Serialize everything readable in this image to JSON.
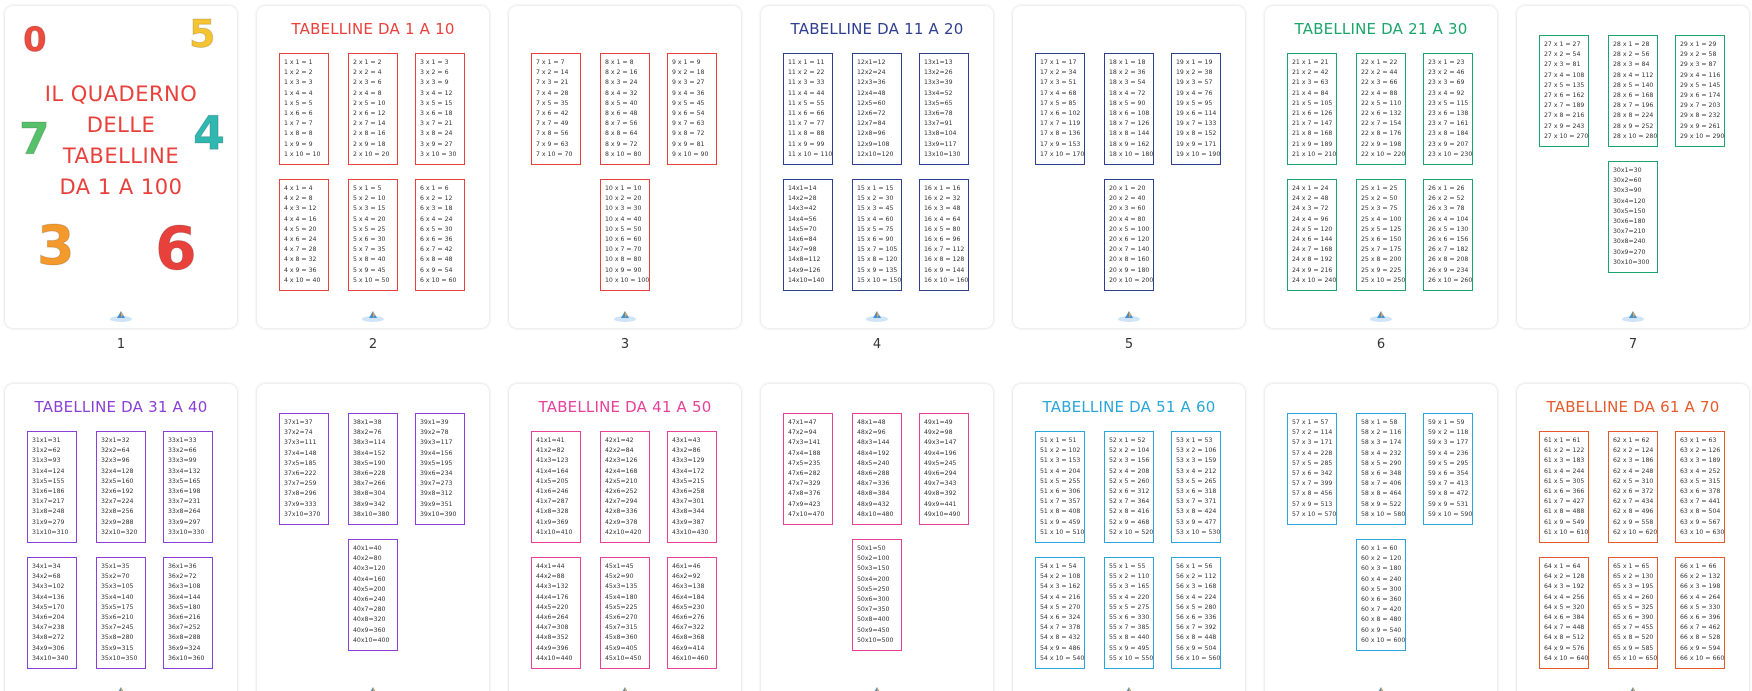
{
  "pages": [
    {
      "label": "1",
      "cover": {
        "title_lines": [
          "IL QUADERNO",
          "DELLE",
          "TABELLINE",
          "DA 1 A 100"
        ],
        "balloons": [
          "0",
          "5",
          "7",
          "4",
          "3",
          "6"
        ]
      }
    },
    {
      "label": "2",
      "title": "TABELLINE DA 1 A 10",
      "color": "#e8413c",
      "tables": [
        [
          "1 x 1 = 1",
          "1 x 2 = 2",
          "1 x 3 = 3",
          "1 x 4 = 4",
          "1 x 5 = 5",
          "1 x 6 = 6",
          "1 x 7 = 7",
          "1 x 8 = 8",
          "1 x 9 = 9",
          "1 x 10 = 10"
        ],
        [
          "2 x 1 = 2",
          "2 x 2 = 4",
          "2 x 3 = 6",
          "2 x 4 = 8",
          "2 x 5 = 10",
          "2 x 6 = 12",
          "2 x 7 = 14",
          "2 x 8 = 16",
          "2 x 9 = 18",
          "2 x 10 = 20"
        ],
        [
          "3 x 1 = 3",
          "3 x 2 = 6",
          "3 x 3 = 9",
          "3 x 4 = 12",
          "3 x 5 = 15",
          "3 x 6 = 18",
          "3 x 7 = 21",
          "3 x 8 = 24",
          "3 x 9 = 27",
          "3 x 10 = 30"
        ],
        [
          "4 x 1 = 4",
          "4 x 2 = 8",
          "4 x 3 = 12",
          "4 x 4 = 16",
          "4 x 5 = 20",
          "4 x 6 = 24",
          "4 x 7 = 28",
          "4 x 8 = 32",
          "4 x 9 = 36",
          "4 x 10 = 40"
        ],
        [
          "5 x 1 = 5",
          "5 x 2 = 10",
          "5 x 3 = 15",
          "5 x 4 = 20",
          "5 x 5 = 25",
          "5 x 6 = 30",
          "5 x 7 = 35",
          "5 x 8 = 40",
          "5 x 9 = 45",
          "5 x 10 = 50"
        ],
        [
          "6 x 1 = 6",
          "6 x 2 = 12",
          "6 x 3 = 18",
          "6 x 4 = 24",
          "6 x 5 = 30",
          "6 x 6 = 36",
          "6 x 7 = 42",
          "6 x 8 = 48",
          "6 x 9 = 54",
          "6 x 10 = 60"
        ]
      ]
    },
    {
      "label": "3",
      "color": "#e8413c",
      "tables": [
        [
          "7 x 1 = 7",
          "7 x 2 = 14",
          "7 x 3 = 21",
          "7 x 4 = 28",
          "7 x 5 = 35",
          "7 x 6 = 42",
          "7 x 7 = 49",
          "7 x 8 = 56",
          "7 x 9 = 63",
          "7 x 10 = 70"
        ],
        [
          "8 x 1 = 8",
          "8 x 2 = 16",
          "8 x 3 = 24",
          "8 x 4 = 32",
          "8 x 5 = 40",
          "8 x 6 = 48",
          "8 x 7 = 56",
          "8 x 8 = 64",
          "8 x 9 = 72",
          "8 x 10 = 80"
        ],
        [
          "9 x 1 = 9",
          "9 x 2 = 18",
          "9 x 3 = 27",
          "9 x 4 = 36",
          "9 x 5 = 45",
          "9 x 6 = 54",
          "9 x 7 = 63",
          "9 x 8 = 72",
          "9 x 9 = 81",
          "9 x 10 = 90"
        ],
        [
          "10 x 1 = 10",
          "10 x 2 = 20",
          "10 x 3 = 30",
          "10 x 4 = 40",
          "10 x 5 = 50",
          "10 x 6 = 60",
          "10 x 7 = 70",
          "10 x 8 = 80",
          "10 x 9 = 90",
          "10 x 10 = 100"
        ]
      ]
    },
    {
      "label": "4",
      "title": "TABELLINE DA 11 A 20",
      "color": "#2f3f8f",
      "tables": [
        [
          "11 x 1 = 11",
          "11 x 2 = 22",
          "11 x 3 = 33",
          "11 x 4 = 44",
          "11 x 5 = 55",
          "11 x 6 = 66",
          "11 x 7 = 77",
          "11 x 8 = 88",
          "11 x 9 = 99",
          "11 x 10 = 110"
        ],
        [
          "12x1=12",
          "12x2=24",
          "12x3=36",
          "12x4=48",
          "12x5=60",
          "12x6=72",
          "12x7=84",
          "12x8=96",
          "12x9=108",
          "12x10=120"
        ],
        [
          "13x1=13",
          "13x2=26",
          "13x3=39",
          "13x4=52",
          "13x5=65",
          "13x6=78",
          "13x7=91",
          "13x8=104",
          "13x9=117",
          "13x10=130"
        ],
        [
          "14x1=14",
          "14x2=28",
          "14x3=42",
          "14x4=56",
          "14x5=70",
          "14x6=84",
          "14x7=98",
          "14x8=112",
          "14x9=126",
          "14x10=140"
        ],
        [
          "15 x 1 = 15",
          "15 x 2 = 30",
          "15 x 3 = 45",
          "15 x 4 = 60",
          "15 x 5 = 75",
          "15 x 6 = 90",
          "15 x 7 = 105",
          "15 x 8 = 120",
          "15 x 9 = 135",
          "15 x 10 = 150"
        ],
        [
          "16 x 1 = 16",
          "16 x 2 = 32",
          "16 x 3 = 48",
          "16 x 4 = 64",
          "16 x 5 = 80",
          "16 x 6 = 96",
          "16 x 7 = 112",
          "16 x 8 = 128",
          "16 x 9 = 144",
          "16 x 10 = 160"
        ]
      ]
    },
    {
      "label": "5",
      "color": "#2f3f8f",
      "tables": [
        [
          "17 x 1 = 17",
          "17 x 2 = 34",
          "17 x 3 = 51",
          "17 x 4 = 68",
          "17 x 5 = 85",
          "17 x 6 = 102",
          "17 x 7 = 119",
          "17 x 8 = 136",
          "17 x 9 = 153",
          "17 x 10 = 170"
        ],
        [
          "18 x 1 = 18",
          "18 x 2 = 36",
          "18 x 3 = 54",
          "18 x 4 = 72",
          "18 x 5 = 90",
          "18 x 6 = 108",
          "18 x 7 = 126",
          "18 x 8 = 144",
          "18 x 9 = 162",
          "18 x 10 = 180"
        ],
        [
          "19 x 1 = 19",
          "19 x 2 = 38",
          "19 x 3 = 57",
          "19 x 4 = 76",
          "19 x 5 = 95",
          "19 x 6 = 114",
          "19 x 7 = 133",
          "19 x 8 = 152",
          "19 x 9 = 171",
          "19 x 10 = 190"
        ],
        [
          "20 x 1 = 20",
          "20 x 2 = 40",
          "20 x 3 = 60",
          "20 x 4 = 80",
          "20 x 5 = 100",
          "20 x 6 = 120",
          "20 x 7 = 140",
          "20 x 8 = 160",
          "20 x 9 = 180",
          "20 x 10 = 200"
        ]
      ]
    },
    {
      "label": "6",
      "title": "TABELLINE DA 21 A 30",
      "color": "#1aa56a",
      "tables": [
        [
          "21 x 1 = 21",
          "21 x 2 = 42",
          "21 x 3 = 63",
          "21 x 4 = 84",
          "21 x 5 = 105",
          "21 x 6 = 126",
          "21 x 7 = 147",
          "21 x 8 = 168",
          "21 x 9 = 189",
          "21 x 10 = 210"
        ],
        [
          "22 x 1 = 22",
          "22 x 2 = 44",
          "22 x 3 = 66",
          "22 x 4 = 88",
          "22 x 5 = 110",
          "22 x 6 = 132",
          "22 x 7 = 154",
          "22 x 8 = 176",
          "22 x 9 = 198",
          "22 x 10 = 220"
        ],
        [
          "23 x 1 = 23",
          "23 x 2 = 46",
          "23 x 3 = 69",
          "23 x 4 = 92",
          "23 x 5 = 115",
          "23 x 6 = 138",
          "23 x 7 = 161",
          "23 x 8 = 184",
          "23 x 9 = 207",
          "23 x 10 = 230"
        ],
        [
          "24 x 1 = 24",
          "24 x 2 = 48",
          "24 x 3 = 72",
          "24 x 4 = 96",
          "24 x 5 = 120",
          "24 x 6 = 144",
          "24 x 7 = 168",
          "24 x 8 = 192",
          "24 x 9 = 216",
          "24 x 10 = 240"
        ],
        [
          "25 x 1 = 25",
          "25 x 2 = 50",
          "25 x 3 = 75",
          "25 x 4 = 100",
          "25 x 5 = 125",
          "25 x 6 = 150",
          "25 x 7 = 175",
          "25 x 8 = 200",
          "25 x 9 = 225",
          "25 x 10 = 250"
        ],
        [
          "26 x 1 = 26",
          "26 x 2 = 52",
          "26 x 3 = 78",
          "26 x 4 = 104",
          "26 x 5 = 130",
          "26 x 6 = 156",
          "26 x 7 = 182",
          "26 x 8 = 208",
          "26 x 9 = 234",
          "26 x 10 = 260"
        ]
      ]
    },
    {
      "label": "7",
      "color": "#1aa56a",
      "tables": [
        [
          "27 x 1 = 27",
          "27 x 2 = 54",
          "27 x 3 = 81",
          "27 x 4 = 108",
          "27 x 5 = 135",
          "27 x 6 = 162",
          "27 x 7 = 189",
          "27 x 8 = 216",
          "27 x 9 = 243",
          "27 x 10 = 270"
        ],
        [
          "28 x 1 = 28",
          "28 x 2 = 56",
          "28 x 3 = 84",
          "28 x 4 = 112",
          "28 x 5 = 140",
          "28 x 6 = 168",
          "28 x 7 = 196",
          "28 x 8 = 224",
          "28 x 9 = 252",
          "28 x 10 = 280"
        ],
        [
          "29 x 1 = 29",
          "29 x 2 = 58",
          "29 x 3 = 87",
          "29 x 4 = 116",
          "29 x 5 = 145",
          "29 x 6 = 174",
          "29 x 7 = 203",
          "29 x 8 = 232",
          "29 x 9 = 261",
          "29 x 10 = 290"
        ],
        [
          "30x1=30",
          "30x2=60",
          "30x3=90",
          "30x4=120",
          "30x5=150",
          "30x6=180",
          "30x7=210",
          "30x8=240",
          "30x9=270",
          "30x10=300"
        ]
      ]
    },
    {
      "title": "TABELLINE DA 31 A 40",
      "color": "#8a3fd6",
      "tables": [
        [
          "31x1=31",
          "31x2=62",
          "31x3=93",
          "31x4=124",
          "31x5=155",
          "31x6=186",
          "31x7=217",
          "31x8=248",
          "31x9=279",
          "31x10=310"
        ],
        [
          "32x1=32",
          "32x2=64",
          "32x3=96",
          "32x4=128",
          "32x5=160",
          "32x6=192",
          "32x7=224",
          "32x8=256",
          "32x9=288",
          "32x10=320"
        ],
        [
          "33x1=33",
          "33x2=66",
          "33x3=99",
          "33x4=132",
          "33x5=165",
          "33x6=198",
          "33x7=231",
          "33x8=264",
          "33x9=297",
          "33x10=330"
        ],
        [
          "34x1=34",
          "34x2=68",
          "34x3=102",
          "34x4=136",
          "34x5=170",
          "34x6=204",
          "34x7=238",
          "34x8=272",
          "34x9=306",
          "34x10=340"
        ],
        [
          "35x1=35",
          "35x2=70",
          "35x3=105",
          "35x4=140",
          "35x5=175",
          "35x6=210",
          "35x7=245",
          "35x8=280",
          "35x9=315",
          "35x10=350"
        ],
        [
          "36x1=36",
          "36x2=72",
          "36x3=108",
          "36x4=144",
          "36x5=180",
          "36x6=216",
          "36x7=252",
          "36x8=288",
          "36x9=324",
          "36x10=360"
        ]
      ]
    },
    {
      "color": "#8a3fd6",
      "tables": [
        [
          "37x1=37",
          "37x2=74",
          "37x3=111",
          "37x4=148",
          "37x5=185",
          "37x6=222",
          "37x7=259",
          "37x8=296",
          "37x9=333",
          "37x10=370"
        ],
        [
          "38x1=38",
          "38x2=76",
          "38x3=114",
          "38x4=152",
          "38x5=190",
          "38x6=228",
          "38x7=266",
          "38x8=304",
          "38x9=342",
          "38x10=380"
        ],
        [
          "39x1=39",
          "39x2=78",
          "39x3=117",
          "39x4=156",
          "39x5=195",
          "39x6=234",
          "39x7=273",
          "39x8=312",
          "39x9=351",
          "39x10=390"
        ],
        [
          "40x1=40",
          "40x2=80",
          "40x3=120",
          "40x4=160",
          "40x5=200",
          "40x6=240",
          "40x7=280",
          "40x8=320",
          "40x9=360",
          "40x10=400"
        ]
      ]
    },
    {
      "title": "TABELLINE DA 41 A 50",
      "color": "#e6409b",
      "tables": [
        [
          "41x1=41",
          "41x2=82",
          "41x3=123",
          "41x4=164",
          "41x5=205",
          "41x6=246",
          "41x7=287",
          "41x8=328",
          "41x9=369",
          "41x10=410"
        ],
        [
          "42x1=42",
          "42x2=84",
          "42x3=126",
          "42x4=168",
          "42x5=210",
          "42x6=252",
          "42x7=294",
          "42x8=336",
          "42x9=378",
          "42x10=420"
        ],
        [
          "43x1=43",
          "43x2=86",
          "43x3=129",
          "43x4=172",
          "43x5=215",
          "43x6=258",
          "43x7=301",
          "43x8=344",
          "43x9=387",
          "43x10=430"
        ],
        [
          "44x1=44",
          "44x2=88",
          "44x3=132",
          "44x4=176",
          "44x5=220",
          "44x6=264",
          "44x7=308",
          "44x8=352",
          "44x9=396",
          "44x10=440"
        ],
        [
          "45x1=45",
          "45x2=90",
          "45x3=135",
          "45x4=180",
          "45x5=225",
          "45x6=270",
          "45x7=315",
          "45x8=360",
          "45x9=405",
          "45x10=450"
        ],
        [
          "46x1=46",
          "46x2=92",
          "46x3=138",
          "46x4=184",
          "46x5=230",
          "46x6=276",
          "46x7=322",
          "46x8=368",
          "46x9=414",
          "46x10=460"
        ]
      ]
    },
    {
      "color": "#e6409b",
      "tables": [
        [
          "47x1=47",
          "47x2=94",
          "47x3=141",
          "47x4=188",
          "47x5=235",
          "47x6=282",
          "47x7=329",
          "47x8=376",
          "47x9=423",
          "47x10=470"
        ],
        [
          "48x1=48",
          "48x2=96",
          "48x3=144",
          "48x4=192",
          "48x5=240",
          "48x6=288",
          "48x7=336",
          "48x8=384",
          "48x9=432",
          "48x10=480"
        ],
        [
          "49x1=49",
          "49x2=98",
          "49x3=147",
          "49x4=196",
          "49x5=245",
          "49x6=294",
          "49x7=343",
          "49x8=392",
          "49x9=441",
          "49x10=490"
        ],
        [
          "50x1=50",
          "50x2=100",
          "50x3=150",
          "50x4=200",
          "50x5=250",
          "50x6=300",
          "50x7=350",
          "50x8=400",
          "50x9=450",
          "50x10=500"
        ]
      ]
    },
    {
      "title": "TABELLINE DA 51 A 60",
      "color": "#2aa6d8",
      "tables": [
        [
          "51 x 1 = 51",
          "51 x 2 = 102",
          "51 x 3 = 153",
          "51 x 4 = 204",
          "51 x 5 = 255",
          "51 x 6 = 306",
          "51 x 7 = 357",
          "51 x 8 = 408",
          "51 x 9 = 459",
          "51 x 10 = 510"
        ],
        [
          "52 x 1 = 52",
          "52 x 2 = 104",
          "52 x 3 = 156",
          "52 x 4 = 208",
          "52 x 5 = 260",
          "52 x 6 = 312",
          "52 x 7 = 364",
          "52 x 8 = 416",
          "52 x 9 = 468",
          "52 x 10 = 520"
        ],
        [
          "53 x 1 = 53",
          "53 x 2 = 106",
          "53 x 3 = 159",
          "53 x 4 = 212",
          "53 x 5 = 265",
          "53 x 6 = 318",
          "53 x 7 = 371",
          "53 x 8 = 424",
          "53 x 9 = 477",
          "53 x 10 = 530"
        ],
        [
          "54 x 1 = 54",
          "54 x 2 = 108",
          "54 x 3 = 162",
          "54 x 4 = 216",
          "54 x 5 = 270",
          "54 x 6 = 324",
          "54 x 7 = 378",
          "54 x 8 = 432",
          "54 x 9 = 486",
          "54 x 10 = 540"
        ],
        [
          "55 x 1 = 55",
          "55 x 2 = 110",
          "55 x 3 = 165",
          "55 x 4 = 220",
          "55 x 5 = 275",
          "55 x 6 = 330",
          "55 x 7 = 385",
          "55 x 8 = 440",
          "55 x 9 = 495",
          "55 x 10 = 550"
        ],
        [
          "56 x 1 = 56",
          "56 x 2 = 112",
          "56 x 3 = 168",
          "56 x 4 = 224",
          "56 x 5 = 280",
          "56 x 6 = 336",
          "56 x 7 = 392",
          "56 x 8 = 448",
          "56 x 9 = 504",
          "56 x 10 = 560"
        ]
      ]
    },
    {
      "color": "#2aa6d8",
      "tables": [
        [
          "57 x 1 = 57",
          "57 x 2 = 114",
          "57 x 3 = 171",
          "57 x 4 = 228",
          "57 x 5 = 285",
          "57 x 6 = 342",
          "57 x 7 = 399",
          "57 x 8 = 456",
          "57 x 9 = 513",
          "57 x 10 = 570"
        ],
        [
          "58 x 1 = 58",
          "58 x 2 = 116",
          "58 x 3 = 174",
          "58 x 4 = 232",
          "58 x 5 = 290",
          "58 x 6 = 348",
          "58 x 7 = 406",
          "58 x 8 = 464",
          "58 x 9 = 522",
          "58 x 10 = 580"
        ],
        [
          "59 x 1 = 59",
          "59 x 2 = 118",
          "59 x 3 = 177",
          "59 x 4 = 236",
          "59 x 5 = 295",
          "59 x 6 = 354",
          "59 x 7 = 413",
          "59 x 8 = 472",
          "59 x 9 = 531",
          "59 x 10 = 590"
        ],
        [
          "60 x 1 = 60",
          "60 x 2 = 120",
          "60 x 3 = 180",
          "60 x 4 = 240",
          "60 x 5 = 300",
          "60 x 6 = 360",
          "60 x 7 = 420",
          "60 x 8 = 480",
          "60 x 9 = 540",
          "60 x 10 = 600"
        ]
      ]
    },
    {
      "title": "TABELLINE DA 61 A 70",
      "color": "#e55a2b",
      "tables": [
        [
          "61 x 1 = 61",
          "61 x 2 = 122",
          "61 x 3 = 183",
          "61 x 4 = 244",
          "61 x 5 = 305",
          "61 x 6 = 366",
          "61 x 7 = 427",
          "61 x 8 = 488",
          "61 x 9 = 549",
          "61 x 10 = 610"
        ],
        [
          "62 x 1 = 62",
          "62 x 2 = 124",
          "62 x 3 = 186",
          "62 x 4 = 248",
          "62 x 5 = 310",
          "62 x 6 = 372",
          "62 x 7 = 434",
          "62 x 8 = 496",
          "62 x 9 = 558",
          "62 x 10 = 620"
        ],
        [
          "63 x 1 = 63",
          "63 x 2 = 126",
          "63 x 3 = 189",
          "63 x 4 = 252",
          "63 x 5 = 315",
          "63 x 6 = 378",
          "63 x 7 = 441",
          "63 x 8 = 504",
          "63 x 9 = 567",
          "63 x 10 = 630"
        ],
        [
          "64 x 1 = 64",
          "64 x 2 = 128",
          "64 x 3 = 192",
          "64 x 4 = 256",
          "64 x 5 = 320",
          "64 x 6 = 384",
          "64 x 7 = 448",
          "64 x 8 = 512",
          "64 x 9 = 576",
          "64 x 10 = 640"
        ],
        [
          "65 x 1 = 65",
          "65 x 2 = 130",
          "65 x 3 = 195",
          "65 x 4 = 260",
          "65 x 5 = 325",
          "65 x 6 = 390",
          "65 x 7 = 455",
          "65 x 8 = 520",
          "65 x 9 = 585",
          "65 x 10 = 650"
        ],
        [
          "66 x 1 = 66",
          "66 x 2 = 132",
          "66 x 3 = 198",
          "66 x 4 = 264",
          "66 x 5 = 330",
          "66 x 6 = 396",
          "66 x 7 = 462",
          "66 x 8 = 528",
          "66 x 9 = 594",
          "66 x 10 = 660"
        ]
      ]
    }
  ]
}
